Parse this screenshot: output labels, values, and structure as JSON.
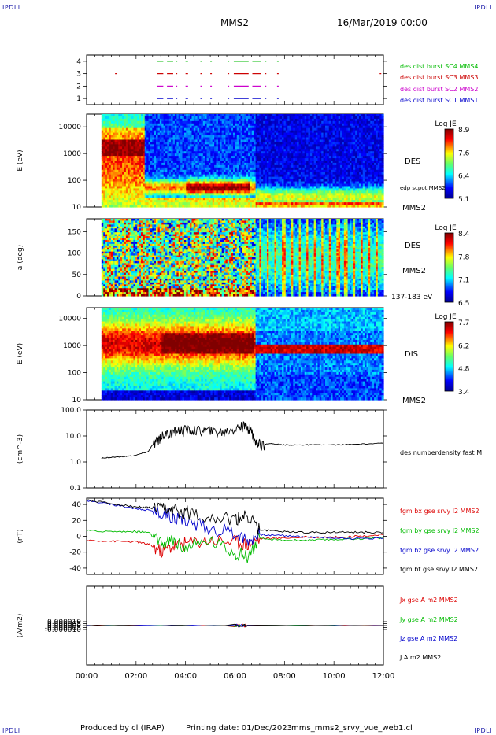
{
  "corner": {
    "tl": "IPDLI",
    "tr": "IPDLI",
    "bl": "IPDLI",
    "br": "IPDLI"
  },
  "header": {
    "spacecraft": "MMS2",
    "date": "16/Mar/2019 00:00"
  },
  "footer": {
    "produced_by": "Produced by cl (IRAP)",
    "printing_date": "Printing date: 01/Dec/2023",
    "script": "mms_mms2_srvy_vue_web1.cl"
  },
  "chart_data": [
    {
      "type": "scatter",
      "panel": "burst-availability",
      "y_ticks": [
        "1",
        "2",
        "3",
        "4"
      ],
      "ylim": [
        0.5,
        4.5
      ],
      "xlim": [
        0,
        12
      ],
      "series": [
        {
          "name": "des dist burst SC1 MMS1",
          "color": "#0000cc",
          "level": 1,
          "intervals": [
            [
              2.85,
              3.1
            ],
            [
              3.25,
              3.5
            ],
            [
              3.6,
              3.65
            ],
            [
              4.0,
              4.1
            ],
            [
              4.6,
              4.65
            ],
            [
              5.0,
              5.05
            ],
            [
              5.7,
              5.75
            ],
            [
              5.95,
              6.55
            ],
            [
              6.7,
              7.05
            ],
            [
              7.2,
              7.25
            ],
            [
              7.7,
              7.75
            ]
          ]
        },
        {
          "name": "des dist burst SC2 MMS2",
          "color": "#cc00cc",
          "level": 2,
          "intervals": [
            [
              2.85,
              3.1
            ],
            [
              3.25,
              3.5
            ],
            [
              3.6,
              3.65
            ],
            [
              4.0,
              4.1
            ],
            [
              4.6,
              4.65
            ],
            [
              5.0,
              5.05
            ],
            [
              5.7,
              5.75
            ],
            [
              5.95,
              6.55
            ],
            [
              6.7,
              7.05
            ],
            [
              7.2,
              7.25
            ],
            [
              7.7,
              7.75
            ]
          ]
        },
        {
          "name": "des dist burst SC3 MMS3",
          "color": "#cc0000",
          "level": 3,
          "intervals": [
            [
              1.15,
              1.18
            ],
            [
              2.85,
              3.1
            ],
            [
              3.25,
              3.5
            ],
            [
              3.6,
              3.65
            ],
            [
              4.0,
              4.1
            ],
            [
              4.6,
              4.65
            ],
            [
              5.0,
              5.05
            ],
            [
              5.7,
              5.75
            ],
            [
              5.95,
              6.55
            ],
            [
              6.7,
              7.05
            ],
            [
              7.2,
              7.25
            ],
            [
              7.7,
              7.75
            ],
            [
              11.85,
              11.88
            ]
          ]
        },
        {
          "name": "des dist burst SC4 MMS4",
          "color": "#00bb00",
          "level": 4,
          "intervals": [
            [
              2.85,
              3.1
            ],
            [
              3.25,
              3.5
            ],
            [
              3.6,
              3.65
            ],
            [
              4.0,
              4.1
            ],
            [
              4.6,
              4.65
            ],
            [
              5.0,
              5.05
            ],
            [
              5.7,
              5.75
            ],
            [
              5.95,
              6.55
            ],
            [
              6.7,
              7.05
            ],
            [
              7.2,
              7.25
            ],
            [
              7.7,
              7.75
            ]
          ]
        }
      ]
    },
    {
      "type": "heatmap",
      "panel": "des-energy-spectrogram",
      "ylabel": "E (eV)",
      "y_scale": "log",
      "ylim": [
        10,
        30000
      ],
      "y_ticks": [
        "10",
        "100",
        "1000",
        "10000"
      ],
      "labels": [
        "DES",
        "edp scpot MMS2",
        "MMS2"
      ],
      "colorbar": {
        "title": "Log JE",
        "min": 5.1,
        "max": 8.9,
        "ticks": [
          "8.9",
          "7.6",
          "6.4",
          "5.1"
        ]
      }
    },
    {
      "type": "heatmap",
      "panel": "des-pitch-angle",
      "ylabel": "a (deg)",
      "ylim": [
        0,
        180
      ],
      "y_ticks": [
        "0",
        "50",
        "100",
        "150"
      ],
      "labels": [
        "DES",
        "MMS2",
        "137-183 eV"
      ],
      "colorbar": {
        "title": "Log JE",
        "min": 6.5,
        "max": 8.4,
        "ticks": [
          "8.4",
          "7.8",
          "7.1",
          "6.5"
        ]
      }
    },
    {
      "type": "heatmap",
      "panel": "dis-energy-spectrogram",
      "ylabel": "E (eV)",
      "y_scale": "log",
      "ylim": [
        10,
        25000
      ],
      "y_ticks": [
        "10",
        "100",
        "1000",
        "10000"
      ],
      "labels": [
        "DIS",
        "MMS2"
      ],
      "colorbar": {
        "title": "Log JE",
        "min": 3.4,
        "max": 7.7,
        "ticks": [
          "7.7",
          "6.2",
          "4.8",
          "3.4"
        ]
      }
    },
    {
      "type": "line",
      "panel": "density",
      "ylabel": "(cm^-3)",
      "y_scale": "log",
      "ylim": [
        0.1,
        100
      ],
      "y_ticks": [
        "0.1",
        "1.0",
        "10.0",
        "100.0"
      ],
      "series": [
        {
          "name": "des numberdensity fast M",
          "color": "#000000",
          "x": [
            0.6,
            1.0,
            1.5,
            2.0,
            2.5,
            2.8,
            3.0,
            3.3,
            3.6,
            4.0,
            4.5,
            5.0,
            5.5,
            6.0,
            6.3,
            6.6,
            6.8,
            7.0,
            7.5,
            8.0,
            8.5,
            9.0,
            10.0,
            11.0,
            12.0
          ],
          "y": [
            1.4,
            1.5,
            1.6,
            1.8,
            2.5,
            6.0,
            10.0,
            12.0,
            16.0,
            18.0,
            17.0,
            16.0,
            14.0,
            20.0,
            25.0,
            20.0,
            6.0,
            5.0,
            5.0,
            4.5,
            4.5,
            4.5,
            4.5,
            4.8,
            5.2
          ]
        }
      ]
    },
    {
      "type": "line",
      "panel": "magnetic-field",
      "ylabel": "(nT)",
      "ylim": [
        -48,
        48
      ],
      "y_ticks": [
        "-40",
        "-20",
        "0",
        "20",
        "40"
      ],
      "series": [
        {
          "name": "fgm bx gse srvy l2 MMS2",
          "color": "#dd0000",
          "x": [
            0,
            1,
            2,
            2.5,
            3,
            3.5,
            4,
            5,
            6,
            6.5,
            7,
            8,
            9,
            10,
            11,
            12
          ],
          "y": [
            -5,
            -6,
            -7,
            -10,
            -18,
            -12,
            -8,
            -4,
            -6,
            -10,
            -3,
            -2,
            -1,
            -1,
            0,
            2
          ]
        },
        {
          "name": "fgm by gse srvy l2 MMS2",
          "color": "#00bb00",
          "x": [
            0,
            1,
            2,
            2.5,
            3,
            3.5,
            4,
            5,
            6,
            6.5,
            7,
            8,
            9,
            10,
            11,
            12
          ],
          "y": [
            7,
            6,
            6,
            5,
            -10,
            -5,
            -15,
            -5,
            -20,
            -25,
            -3,
            -5,
            -5,
            -4,
            -3,
            -2
          ]
        },
        {
          "name": "fgm bz gse srvy l2 MMS2",
          "color": "#0000cc",
          "x": [
            0,
            1,
            2,
            2.5,
            3,
            3.5,
            4,
            5,
            6,
            6.5,
            7,
            8,
            9,
            10,
            11,
            12
          ],
          "y": [
            45,
            40,
            35,
            33,
            30,
            25,
            20,
            10,
            5,
            -5,
            2,
            1,
            -1,
            -2,
            -3,
            -2
          ]
        },
        {
          "name": "fgm bt gse srvy l2 MMS2",
          "color": "#000000",
          "x": [
            0,
            1,
            2,
            2.5,
            3,
            3.5,
            4,
            5,
            6,
            6.5,
            7,
            8,
            9,
            10,
            11,
            12
          ],
          "y": [
            46,
            41,
            37,
            36,
            34,
            32,
            30,
            25,
            20,
            26,
            8,
            6,
            5,
            5,
            5,
            5
          ]
        }
      ]
    },
    {
      "type": "line",
      "panel": "current-density",
      "ylabel": "(A/m2)",
      "ylim": [
        -0.0001,
        0.0001
      ],
      "y_ticks": [
        "-0.000010",
        "-0.000005",
        "0.000000",
        "0.000005",
        "0.000010"
      ],
      "x_ticks": [
        "00:00",
        "02:00",
        "04:00",
        "06:00",
        "08:00",
        "10:00",
        "12:00"
      ],
      "series": [
        {
          "name": "Jx gse A m2 MMS2",
          "color": "#dd0000",
          "x": [
            0,
            6,
            6.5,
            12
          ],
          "y": [
            0,
            0,
            0,
            0
          ]
        },
        {
          "name": "Jy gse A m2 MMS2",
          "color": "#00bb00",
          "x": [
            0,
            6,
            6.5,
            12
          ],
          "y": [
            0,
            0,
            0,
            0
          ]
        },
        {
          "name": "Jz gse A m2 MMS2",
          "color": "#0000cc",
          "x": [
            0,
            6,
            6.5,
            12
          ],
          "y": [
            0,
            0,
            0,
            0
          ]
        },
        {
          "name": "J A m2 MMS2",
          "color": "#000000",
          "x": [
            0,
            6,
            6.5,
            12
          ],
          "y": [
            0,
            0,
            0,
            0
          ]
        }
      ]
    }
  ]
}
